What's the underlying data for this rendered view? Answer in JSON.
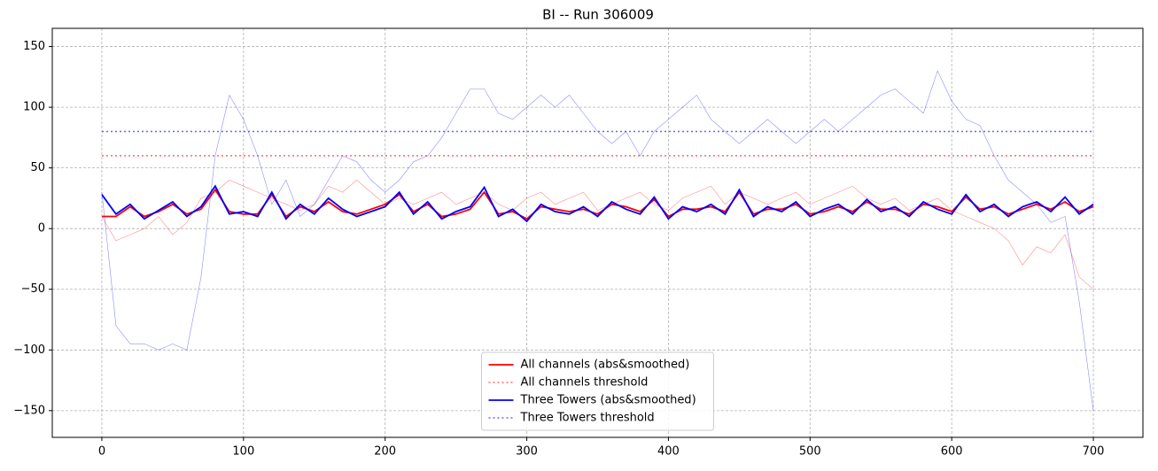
{
  "chart_data": {
    "type": "line",
    "title": "BI -- Run 306009",
    "x": [
      0,
      10,
      20,
      30,
      40,
      50,
      60,
      70,
      80,
      90,
      100,
      110,
      120,
      130,
      140,
      150,
      160,
      170,
      180,
      190,
      200,
      210,
      220,
      230,
      240,
      250,
      260,
      270,
      280,
      290,
      300,
      310,
      320,
      330,
      340,
      350,
      360,
      370,
      380,
      390,
      400,
      410,
      420,
      430,
      440,
      450,
      460,
      470,
      480,
      490,
      500,
      510,
      520,
      530,
      540,
      550,
      560,
      570,
      580,
      590,
      600,
      610,
      620,
      630,
      640,
      650,
      660,
      670,
      680,
      690,
      700
    ],
    "xlim": [
      -35,
      735
    ],
    "xticks": [
      0,
      100,
      200,
      300,
      400,
      500,
      600,
      700
    ],
    "ylim": [
      -172,
      165
    ],
    "yticks": [
      {
        "value": -150,
        "label": "−150"
      },
      {
        "value": -100,
        "label": "−100"
      },
      {
        "value": -50,
        "label": "−50"
      },
      0,
      50,
      100,
      150
    ],
    "grid": true,
    "legend": "lower center",
    "series": [
      {
        "color": "#ff0000",
        "opacity": 0.45,
        "width": 0.6,
        "values": [
          10,
          -10,
          -5,
          0,
          10,
          -5,
          5,
          25,
          30,
          40,
          35,
          30,
          25,
          20,
          15,
          20,
          35,
          30,
          40,
          30,
          20,
          25,
          20,
          25,
          30,
          20,
          25,
          30,
          20,
          15,
          25,
          30,
          20,
          25,
          30,
          15,
          20,
          25,
          30,
          20,
          15,
          25,
          30,
          35,
          20,
          30,
          25,
          20,
          25,
          30,
          20,
          25,
          30,
          35,
          25,
          20,
          25,
          15,
          20,
          25,
          15,
          10,
          5,
          0,
          -10,
          -30,
          -15,
          -20,
          -5,
          -40,
          -50
        ]
      },
      {
        "color": "#0000ff",
        "opacity": 0.45,
        "width": 0.6,
        "values": [
          30,
          -80,
          -95,
          -95,
          -100,
          -95,
          -100,
          -40,
          60,
          110,
          90,
          60,
          20,
          40,
          10,
          20,
          40,
          60,
          55,
          40,
          30,
          40,
          55,
          60,
          75,
          95,
          115,
          115,
          95,
          90,
          100,
          110,
          100,
          110,
          95,
          80,
          70,
          80,
          60,
          80,
          90,
          100,
          110,
          90,
          80,
          70,
          80,
          90,
          80,
          70,
          80,
          90,
          80,
          90,
          100,
          110,
          115,
          105,
          95,
          130,
          105,
          90,
          85,
          60,
          40,
          30,
          20,
          5,
          10,
          -60,
          -150
        ]
      },
      {
        "name": "All channels (abs&smoothed)",
        "color": "#ff0000",
        "width": 1.8,
        "values": [
          10,
          10,
          18,
          10,
          14,
          20,
          12,
          16,
          32,
          14,
          12,
          12,
          28,
          10,
          18,
          14,
          22,
          14,
          12,
          16,
          20,
          28,
          14,
          20,
          10,
          12,
          16,
          30,
          12,
          14,
          8,
          18,
          16,
          14,
          16,
          12,
          20,
          18,
          14,
          24,
          10,
          16,
          16,
          18,
          14,
          30,
          12,
          16,
          16,
          20,
          12,
          14,
          18,
          14,
          22,
          16,
          16,
          12,
          20,
          18,
          14,
          26,
          16,
          18,
          12,
          16,
          20,
          16,
          22,
          14,
          18
        ]
      },
      {
        "name": "All channels threshold",
        "color": "#ff0000",
        "opacity": 0.6,
        "width": 1.5,
        "dash": "2,3",
        "x": [
          0,
          700
        ],
        "values": [
          60,
          60
        ]
      },
      {
        "name": "Three Towers (abs&smoothed)",
        "color": "#0000ff",
        "width": 1.8,
        "values": [
          28,
          12,
          20,
          8,
          15,
          22,
          10,
          18,
          35,
          12,
          14,
          10,
          30,
          8,
          20,
          12,
          25,
          16,
          10,
          14,
          18,
          30,
          12,
          22,
          8,
          14,
          18,
          34,
          10,
          16,
          6,
          20,
          14,
          12,
          18,
          10,
          22,
          16,
          12,
          26,
          8,
          18,
          14,
          20,
          12,
          32,
          10,
          18,
          14,
          22,
          10,
          16,
          20,
          12,
          24,
          14,
          18,
          10,
          22,
          16,
          12,
          28,
          14,
          20,
          10,
          18,
          22,
          14,
          26,
          12,
          20
        ]
      },
      {
        "name": "Three Towers threshold",
        "color": "#0000ff",
        "opacity": 0.6,
        "width": 1.5,
        "dash": "2,3",
        "x": [
          0,
          700
        ],
        "values": [
          80,
          80
        ]
      }
    ]
  }
}
